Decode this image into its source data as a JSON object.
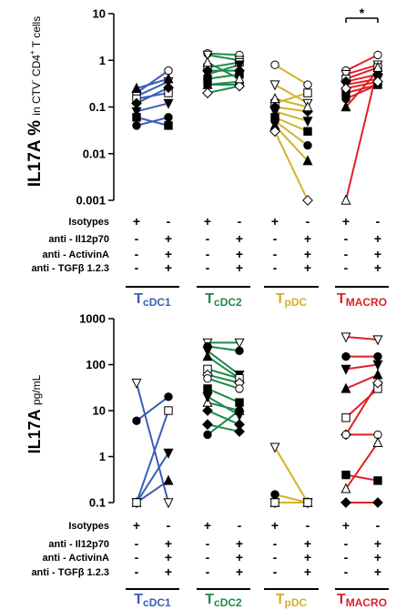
{
  "colors": {
    "cDC1": "#3a5fb4",
    "cDC2": "#1f8a4c",
    "pDC": "#d4b12a",
    "MACRO": "#e02027",
    "axis": "#000000"
  },
  "factor_rows": {
    "labels": [
      "Isotypes",
      "anti - Il12p70",
      "anti - ActivinA",
      "anti - TGFβ 1.2.3"
    ],
    "col1": [
      "+",
      "-",
      "-",
      "-"
    ],
    "col2": [
      "-",
      "+",
      "+",
      "+"
    ]
  },
  "groups": [
    {
      "key": "cDC1",
      "prefix": "T",
      "sub": "cDC1"
    },
    {
      "key": "cDC2",
      "prefix": "T",
      "sub": "cDC2"
    },
    {
      "key": "pDC",
      "prefix": "T",
      "sub": "pDC"
    },
    {
      "key": "MACRO",
      "prefix": "T",
      "sub": "MACRO"
    }
  ],
  "chart_data": [
    {
      "type": "scatter",
      "ylabel_main": "IL17A %",
      "ylabel_small": "in CTV",
      "ylabel_sup1": "-",
      "ylabel_mid": " CD4",
      "ylabel_sup2": "+",
      "ylabel_end": " T cells",
      "yscale": "log",
      "ylim": [
        0.001,
        10
      ],
      "yticks": [
        {
          "v": 10,
          "label": "10"
        },
        {
          "v": 1,
          "label": "1"
        },
        {
          "v": 0.1,
          "label": "0.1"
        },
        {
          "v": 0.01,
          "label": "0.01"
        },
        {
          "v": 0.001,
          "label": "0.001"
        }
      ],
      "significance": [
        {
          "group": "MACRO",
          "label": "*"
        }
      ],
      "series": [
        {
          "group": "cDC1",
          "pairs": [
            [
              0.2,
              0.6
            ],
            [
              0.17,
              0.35
            ],
            [
              0.15,
              0.2
            ],
            [
              0.12,
              0.26
            ],
            [
              0.08,
              0.12
            ],
            [
              0.06,
              0.04
            ],
            [
              0.04,
              0.06
            ],
            [
              0.25,
              0.4
            ]
          ]
        },
        {
          "group": "cDC2",
          "pairs": [
            [
              1.4,
              1.3
            ],
            [
              1.3,
              1.0
            ],
            [
              0.7,
              0.9
            ],
            [
              0.6,
              0.6
            ],
            [
              0.5,
              0.8
            ],
            [
              0.4,
              0.5
            ],
            [
              0.3,
              0.3
            ],
            [
              0.3,
              0.35
            ],
            [
              0.2,
              0.28
            ],
            [
              0.9,
              0.4
            ]
          ]
        },
        {
          "group": "pDC",
          "pairs": [
            [
              0.8,
              0.3
            ],
            [
              0.3,
              0.12
            ],
            [
              0.12,
              0.2
            ],
            [
              0.1,
              0.08
            ],
            [
              0.08,
              0.05
            ],
            [
              0.06,
              0.03
            ],
            [
              0.05,
              0.015
            ],
            [
              0.04,
              0.007
            ],
            [
              0.03,
              0.001
            ],
            [
              0.15,
              0.1
            ]
          ]
        },
        {
          "group": "MACRO",
          "pairs": [
            [
              0.6,
              1.3
            ],
            [
              0.5,
              0.8
            ],
            [
              0.4,
              0.7
            ],
            [
              0.35,
              0.5
            ],
            [
              0.3,
              0.4
            ],
            [
              0.2,
              0.3
            ],
            [
              0.15,
              0.3
            ],
            [
              0.1,
              0.6
            ],
            [
              0.25,
              0.35
            ],
            [
              0.001,
              0.7
            ]
          ]
        }
      ]
    },
    {
      "type": "scatter",
      "ylabel_main": "IL17A",
      "ylabel_small": "pg/mL",
      "yscale": "log",
      "ylim": [
        0.1,
        1000
      ],
      "yticks": [
        {
          "v": 1000,
          "label": "1000"
        },
        {
          "v": 100,
          "label": "100"
        },
        {
          "v": 10,
          "label": "10"
        },
        {
          "v": 1,
          "label": "1"
        },
        {
          "v": 0.1,
          "label": "0.1"
        }
      ],
      "series": [
        {
          "group": "cDC1",
          "pairs": [
            [
              40,
              0.1
            ],
            [
              6,
              20
            ],
            [
              0.1,
              1.2
            ],
            [
              0.1,
              0.3
            ],
            [
              0.1,
              10
            ]
          ]
        },
        {
          "group": "cDC2",
          "pairs": [
            [
              300,
              300
            ],
            [
              250,
              200
            ],
            [
              200,
              60
            ],
            [
              150,
              50
            ],
            [
              80,
              50
            ],
            [
              60,
              40
            ],
            [
              50,
              30
            ],
            [
              30,
              15
            ],
            [
              15,
              10
            ],
            [
              10,
              5
            ],
            [
              5,
              3.5
            ],
            [
              3,
              10
            ],
            [
              20,
              8
            ]
          ]
        },
        {
          "group": "pDC",
          "pairs": [
            [
              1.6,
              0.1
            ],
            [
              0.15,
              0.1
            ],
            [
              0.1,
              0.1
            ],
            [
              0.1,
              0.1
            ],
            [
              0.1,
              0.1
            ]
          ]
        },
        {
          "group": "MACRO",
          "pairs": [
            [
              400,
              350
            ],
            [
              150,
              150
            ],
            [
              80,
              100
            ],
            [
              30,
              60
            ],
            [
              7,
              30
            ],
            [
              3,
              40
            ],
            [
              3,
              3
            ],
            [
              0.4,
              0.3
            ],
            [
              0.2,
              2
            ],
            [
              0.1,
              0.1
            ]
          ]
        }
      ]
    }
  ]
}
